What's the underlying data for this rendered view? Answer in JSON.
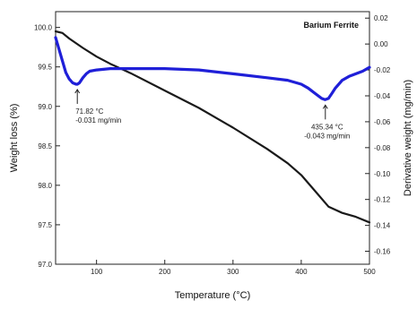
{
  "chart_data": {
    "type": "line",
    "title": "Barium Ferrite",
    "xlabel": "Temperature (°C)",
    "ylabel_left": "Weight loss (%)",
    "ylabel_right": "Derivative weight (mg/min)",
    "xlim": [
      40,
      500
    ],
    "ylim_left": [
      97.0,
      100.2
    ],
    "ylim_right": [
      -0.17,
      0.025
    ],
    "x_ticks": [
      100,
      200,
      300,
      400,
      500
    ],
    "x_tick_labels": [
      "100",
      "200",
      "300",
      "400",
      "500"
    ],
    "y_left_ticks": [
      97.0,
      97.5,
      98.0,
      98.5,
      99.0,
      99.5,
      100.0
    ],
    "y_left_tick_labels": [
      "97.0",
      "97.5",
      "98.0",
      "98.5",
      "99.0",
      "99.5",
      "100.0"
    ],
    "y_right_ticks": [
      -0.16,
      -0.14,
      -0.12,
      -0.1,
      -0.08,
      -0.06,
      -0.04,
      -0.02,
      0.0,
      0.02
    ],
    "y_right_tick_labels": [
      "-0.16",
      "-0.14",
      "-0.12",
      "-0.10",
      "-0.08",
      "-0.06",
      "-0.04",
      "-0.02",
      "0.00",
      "0.02"
    ],
    "grid": false,
    "series": [
      {
        "axis": "left",
        "color": "#1a1a1a",
        "x": [
          40,
          50,
          60,
          80,
          100,
          120,
          150,
          200,
          250,
          300,
          350,
          380,
          400,
          420,
          440,
          460,
          480,
          500
        ],
        "y": [
          99.95,
          99.93,
          99.86,
          99.74,
          99.63,
          99.54,
          99.42,
          99.2,
          98.98,
          98.73,
          98.46,
          98.28,
          98.13,
          97.93,
          97.73,
          97.65,
          97.6,
          97.53
        ]
      },
      {
        "axis": "right",
        "color": "#1f1fd8",
        "x": [
          40,
          45,
          50,
          55,
          60,
          65,
          70,
          72,
          75,
          80,
          85,
          90,
          100,
          120,
          150,
          200,
          250,
          300,
          350,
          380,
          400,
          410,
          420,
          430,
          435,
          440,
          445,
          450,
          460,
          470,
          480,
          490,
          500
        ],
        "y": [
          0.005,
          -0.004,
          -0.013,
          -0.022,
          -0.027,
          -0.03,
          -0.031,
          -0.031,
          -0.03,
          -0.026,
          -0.023,
          -0.021,
          -0.02,
          -0.019,
          -0.019,
          -0.019,
          -0.02,
          -0.023,
          -0.026,
          -0.028,
          -0.031,
          -0.034,
          -0.038,
          -0.042,
          -0.043,
          -0.042,
          -0.038,
          -0.034,
          -0.028,
          -0.025,
          -0.023,
          -0.021,
          -0.018
        ]
      }
    ],
    "annotations": [
      {
        "x": 71.82,
        "y": -0.031,
        "axis": "right",
        "lines": [
          "71.82 °C",
          "-0.031 mg/min"
        ]
      },
      {
        "x": 435.34,
        "y": -0.043,
        "axis": "right",
        "lines": [
          "435.34 °C",
          "-0.043 mg/min"
        ]
      }
    ]
  }
}
